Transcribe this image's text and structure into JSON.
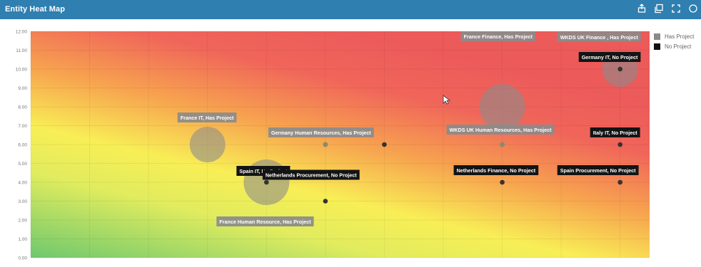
{
  "window": {
    "title": "Entity Heat Map",
    "tools": [
      "export-icon",
      "copy-chart-icon",
      "fullscreen-icon",
      "more-icon"
    ]
  },
  "legend": {
    "placement": "top-right",
    "items": [
      {
        "label": "Has Project",
        "color": "#8a8a8a"
      },
      {
        "label": "No Project",
        "color": "#111111"
      }
    ]
  },
  "chart_data": {
    "type": "scatter",
    "title": "",
    "xlabel": "",
    "ylabel": "",
    "xlim": [
      0,
      10.5
    ],
    "ylim": [
      0,
      12
    ],
    "y_ticks": [
      "0.00",
      "1.00",
      "2.00",
      "3.00",
      "4.00",
      "5.00",
      "6.00",
      "7.00",
      "8.00",
      "9.00",
      "10.00",
      "11.00",
      "12.00"
    ],
    "grid": true,
    "background": "heat gradient: green (bottom-left) to yellow to red (top-right)",
    "points": [
      {
        "label": "France IT, Has Project",
        "x": 3.0,
        "y": 6.0,
        "size": 3,
        "category": "Has Project"
      },
      {
        "label": "France Human Resource, Has Project",
        "x": 4.0,
        "y": 4.0,
        "size": 4,
        "category": "Has Project"
      },
      {
        "label": "Germany Human Resources, Has Project",
        "x": 5.0,
        "y": 6.0,
        "size": 1,
        "category": "Has Project"
      },
      {
        "label": "France Finance, Has Project",
        "x": 8.0,
        "y": 8.0,
        "size": 4,
        "category": "Has Project"
      },
      {
        "label": "WKDS UK Finance , Has Project",
        "x": 10.0,
        "y": 10.0,
        "size": 3,
        "category": "Has Project"
      },
      {
        "label": "WKDS UK Human Resources, Has Project",
        "x": 8.0,
        "y": 6.0,
        "size": 1,
        "category": "Has Project"
      },
      {
        "label": "Germany IT, No Project",
        "x": 10.0,
        "y": 10.0,
        "size": 1,
        "category": "No Project"
      },
      {
        "label": "Italy IT, No Project",
        "x": 10.0,
        "y": 6.0,
        "size": 1,
        "category": "No Project"
      },
      {
        "label": "Spain IT, No Project",
        "x": 4.0,
        "y": 4.0,
        "size": 1,
        "category": "No Project"
      },
      {
        "label": "Netherlands Procurement, No Project",
        "x": 5.0,
        "y": 3.0,
        "size": 1,
        "category": "No Project"
      },
      {
        "label": "Netherlands Finance, No Project",
        "x": 8.0,
        "y": 4.0,
        "size": 1,
        "category": "No Project"
      },
      {
        "label": "Spain Procurement, No Project",
        "x": 10.0,
        "y": 4.0,
        "size": 1,
        "category": "No Project"
      },
      {
        "label": "",
        "x": 6.0,
        "y": 6.0,
        "size": 1,
        "category": "No Project"
      }
    ]
  }
}
